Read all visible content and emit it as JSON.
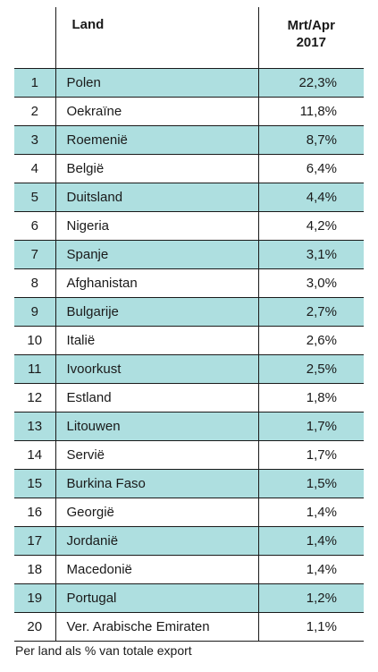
{
  "table": {
    "headers": {
      "rank": "",
      "land": "Land",
      "value_line1": "Mrt/Apr",
      "value_line2": "2017"
    },
    "rows": [
      {
        "rank": "1",
        "land": "Polen",
        "value": "22,3%"
      },
      {
        "rank": "2",
        "land": "Oekraïne",
        "value": "11,8%"
      },
      {
        "rank": "3",
        "land": "Roemenië",
        "value": "8,7%"
      },
      {
        "rank": "4",
        "land": "België",
        "value": "6,4%"
      },
      {
        "rank": "5",
        "land": "Duitsland",
        "value": "4,4%"
      },
      {
        "rank": "6",
        "land": "Nigeria",
        "value": "4,2%"
      },
      {
        "rank": "7",
        "land": "Spanje",
        "value": "3,1%"
      },
      {
        "rank": "8",
        "land": "Afghanistan",
        "value": "3,0%"
      },
      {
        "rank": "9",
        "land": "Bulgarije",
        "value": "2,7%"
      },
      {
        "rank": "10",
        "land": "Italië",
        "value": "2,6%"
      },
      {
        "rank": "11",
        "land": "Ivoorkust",
        "value": "2,5%"
      },
      {
        "rank": "12",
        "land": "Estland",
        "value": "1,8%"
      },
      {
        "rank": "13",
        "land": "Litouwen",
        "value": "1,7%"
      },
      {
        "rank": "14",
        "land": "Servië",
        "value": "1,7%"
      },
      {
        "rank": "15",
        "land": "Burkina Faso",
        "value": "1,5%"
      },
      {
        "rank": "16",
        "land": "Georgië",
        "value": "1,4%"
      },
      {
        "rank": "17",
        "land": "Jordanië",
        "value": "1,4%"
      },
      {
        "rank": "18",
        "land": "Macedonië",
        "value": "1,4%"
      },
      {
        "rank": "19",
        "land": "Portugal",
        "value": "1,2%"
      },
      {
        "rank": "20",
        "land": "Ver. Arabische Emiraten",
        "value": "1,1%"
      }
    ]
  },
  "colors": {
    "row_shade": "#aedfe0",
    "text": "#1a1a1a",
    "rule": "#1a1a1a"
  },
  "footnote": "Per land als % van totale export"
}
